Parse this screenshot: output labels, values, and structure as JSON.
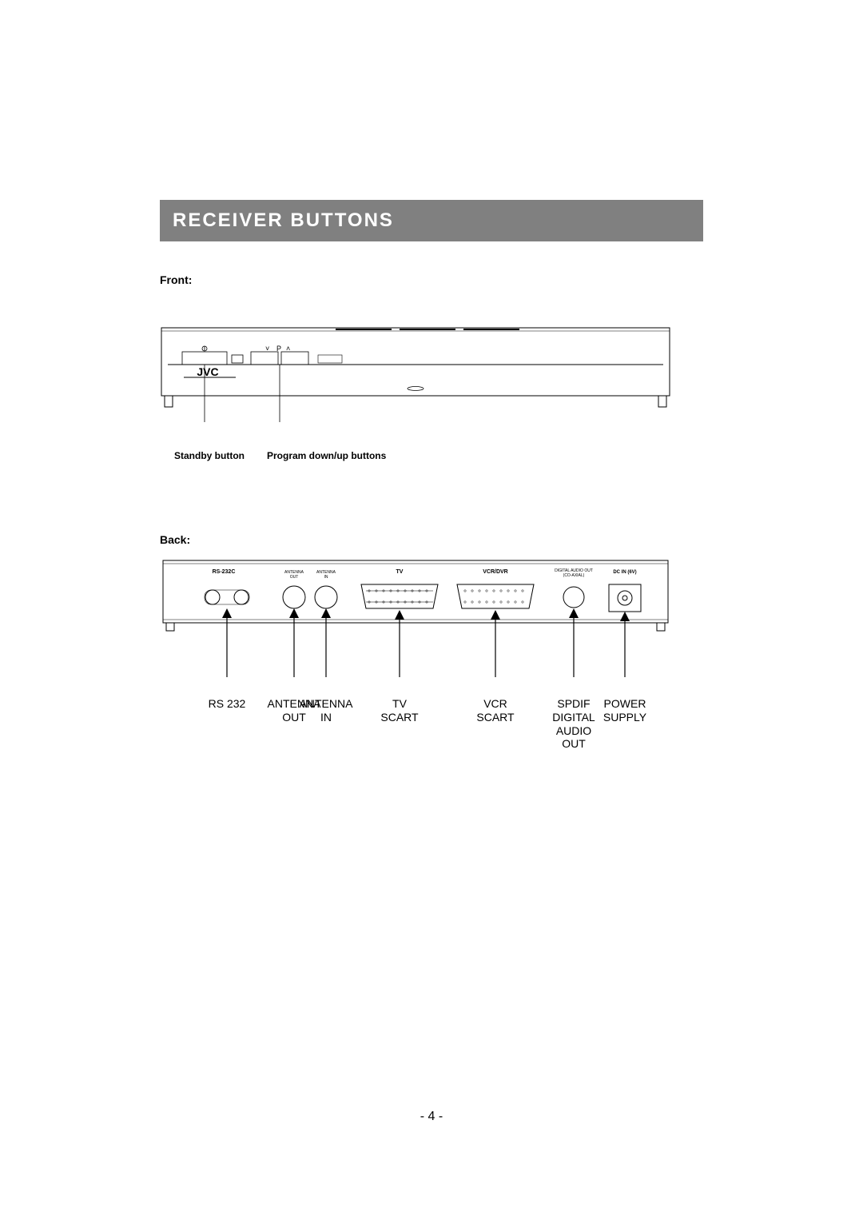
{
  "colors": {
    "header_bg": "#808080",
    "header_fg": "#ffffff",
    "line": "#000000"
  },
  "title": "RECEIVER BUTTONS",
  "front": {
    "heading": "Front:",
    "brand": "JVC",
    "callout_left": "Standby button",
    "callout_right": "Program down/up buttons"
  },
  "back": {
    "heading": "Back:",
    "panel_labels": {
      "rs232": "RS-232C",
      "ant_out": "ANTENNA\nOUT",
      "ant_in": "ANTENNA\nIN",
      "tv": "TV",
      "vcr": "VCR/DVR",
      "spdif": "DIGITAL AUDIO OUT\n(CO-AXIAL)",
      "dcin": "DC IN (6V)"
    },
    "callouts": {
      "rs232": "RS 232",
      "ant_out": "ANTENNA\nOUT",
      "ant_in": "ANTENNA\nIN",
      "tv": "TV\nSCART",
      "vcr": "VCR\nSCART",
      "spdif": "SPDIF\nDIGITAL\nAUDIO\nOUT",
      "power": "POWER\nSUPPLY"
    }
  },
  "page_number": "- 4 -"
}
